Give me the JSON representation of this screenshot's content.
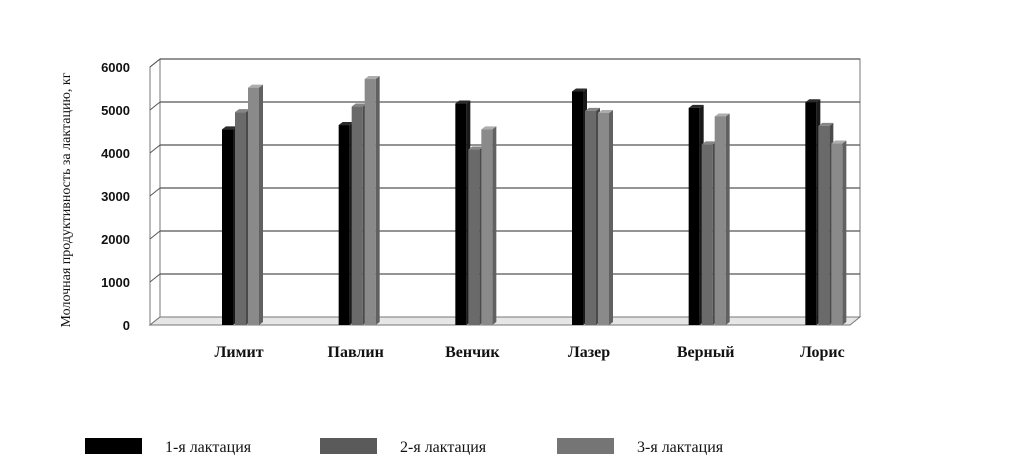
{
  "chart_data": {
    "type": "bar",
    "title": "",
    "xlabel": "",
    "ylabel": "Молочная продуктивность за лактацию, кг",
    "ylim": [
      0,
      6000
    ],
    "yticks": [
      0,
      1000,
      2000,
      3000,
      4000,
      5000,
      6000
    ],
    "grid": true,
    "style": "3d-columns",
    "legend_position": "bottom",
    "categories": [
      "Лимит",
      "Павлин",
      "Венчик",
      "Лазер",
      "Верный",
      "Лорис"
    ],
    "series": [
      {
        "name": "1-я лактация",
        "color": "#000000",
        "values": [
          4550,
          4650,
          5150,
          5430,
          5050,
          5180
        ]
      },
      {
        "name": "2-я лактация",
        "color": "#6a6a6a",
        "values": [
          4950,
          5080,
          4080,
          4980,
          4200,
          4630
        ]
      },
      {
        "name": "3-я лактация",
        "color": "#8a8a8a",
        "values": [
          5520,
          5720,
          4550,
          4930,
          4850,
          4220
        ]
      }
    ]
  }
}
